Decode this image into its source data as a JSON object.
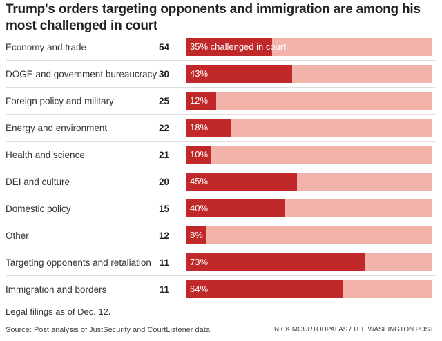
{
  "chart_data": {
    "type": "bar",
    "title": "Trump's orders targeting opponents and immigration are among his most challenged in court",
    "xlabel": "",
    "ylabel": "",
    "xlim": [
      0,
      100
    ],
    "value_unit": "% challenged in court",
    "first_label_suffix": " challenged in court",
    "categories": [
      "Economy and trade",
      "DOGE and government bureaucracy",
      "Foreign policy and military",
      "Energy and environment",
      "Health and science",
      "DEI and culture",
      "Domestic policy",
      "Other",
      "Targeting opponents and retaliation",
      "Immigration and borders"
    ],
    "series": [
      {
        "name": "Number of orders",
        "values": [
          54,
          30,
          25,
          22,
          21,
          20,
          15,
          12,
          11,
          11
        ]
      },
      {
        "name": "Percent challenged in court",
        "values": [
          35,
          43,
          12,
          18,
          10,
          45,
          40,
          8,
          73,
          64
        ]
      }
    ],
    "colors": {
      "challenged": "#c0282a",
      "background": "#f2b3aa"
    }
  },
  "footer": {
    "note": "Legal filings as of Dec. 12.",
    "source": "Source: Post analysis of JustSecurity and CourtListener data",
    "credit": "NICK MOURTOUPALAS / THE WASHINGTON POST"
  }
}
